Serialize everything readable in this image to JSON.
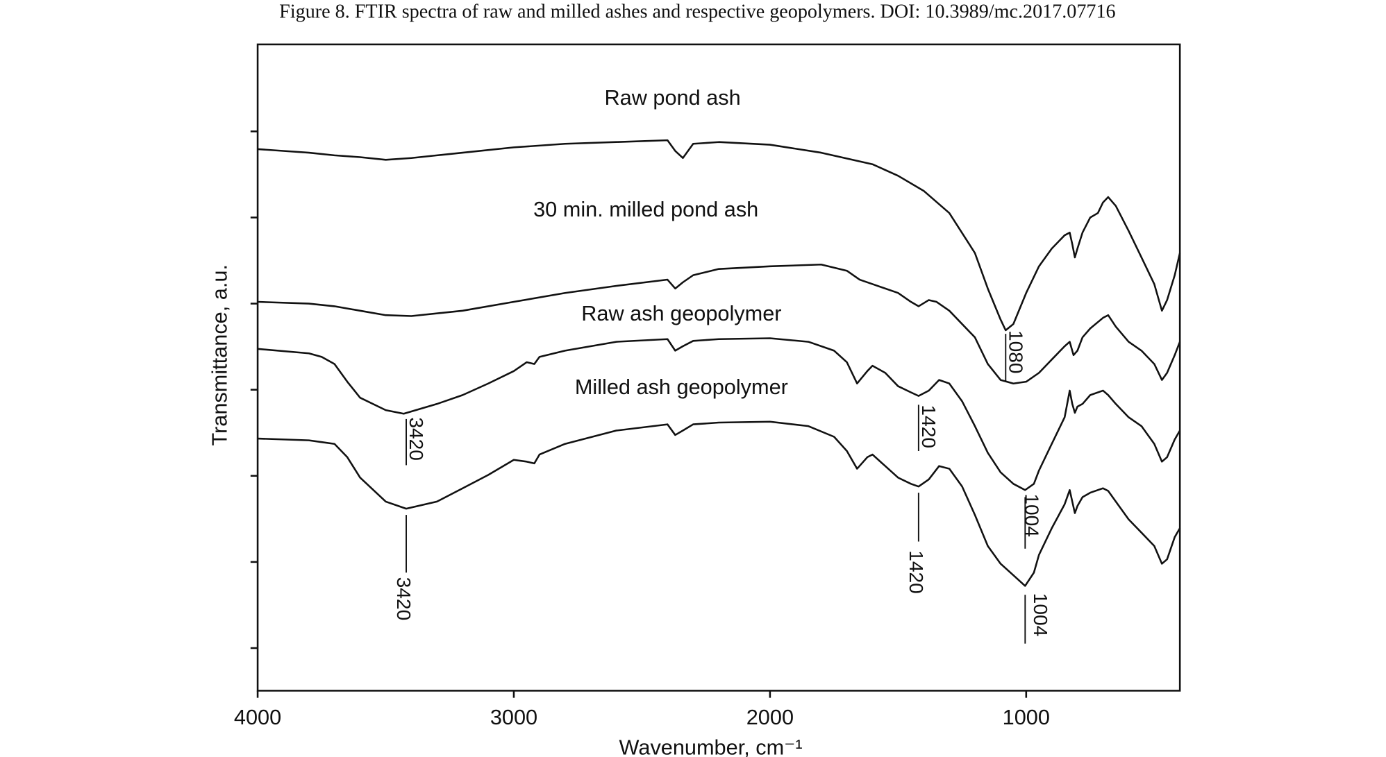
{
  "chart_data": {
    "type": "line",
    "title": "Figure 8. FTIR spectra of raw and milled ashes and respective geopolymers. DOI: 10.3989/mc.2017.07716",
    "x_label": "Wavenumber, cm⁻¹",
    "y_label": "Transmittance, a.u.",
    "xlim": [
      4000,
      400
    ],
    "xticks": [
      4000,
      3000,
      2000,
      1000
    ],
    "ylim": [
      0,
      728
    ],
    "yticks": [
      630,
      533,
      436,
      339,
      242,
      145,
      48
    ],
    "ytick_labels": false,
    "grid": false,
    "series": [
      {
        "name": "Raw pond ash",
        "color": "#111111",
        "x": [
          4000,
          3900,
          3800,
          3700,
          3600,
          3500,
          3400,
          3300,
          3200,
          3000,
          2800,
          2600,
          2400,
          2370,
          2340,
          2300,
          2200,
          2000,
          1800,
          1600,
          1500,
          1400,
          1300,
          1200,
          1150,
          1100,
          1080,
          1050,
          1000,
          950,
          900,
          850,
          830,
          820,
          810,
          800,
          780,
          750,
          720,
          700,
          680,
          650,
          600,
          550,
          500,
          470,
          450,
          420,
          400
        ],
        "values": [
          610,
          608,
          606,
          603,
          601,
          598,
          600,
          603,
          606,
          612,
          616,
          618,
          620,
          608,
          600,
          616,
          618,
          615,
          606,
          593,
          580,
          563,
          538,
          493,
          453,
          418,
          406,
          413,
          448,
          478,
          498,
          513,
          516,
          503,
          488,
          498,
          516,
          533,
          538,
          550,
          556,
          546,
          518,
          488,
          458,
          428,
          440,
          468,
          493
        ]
      },
      {
        "name": "30 min. milled pond ash",
        "color": "#111111",
        "x": [
          4000,
          3800,
          3700,
          3600,
          3500,
          3400,
          3200,
          3000,
          2800,
          2600,
          2400,
          2370,
          2340,
          2300,
          2200,
          2000,
          1800,
          1700,
          1650,
          1600,
          1500,
          1450,
          1420,
          1380,
          1350,
          1300,
          1200,
          1150,
          1100,
          1050,
          1000,
          950,
          900,
          850,
          830,
          815,
          800,
          780,
          750,
          700,
          680,
          650,
          600,
          550,
          500,
          470,
          450,
          420,
          400
        ],
        "values": [
          438,
          436,
          433,
          428,
          423,
          422,
          428,
          438,
          448,
          456,
          463,
          453,
          460,
          468,
          475,
          478,
          480,
          473,
          463,
          458,
          448,
          438,
          433,
          440,
          438,
          428,
          398,
          368,
          350,
          346,
          348,
          358,
          373,
          388,
          393,
          378,
          383,
          398,
          408,
          420,
          423,
          410,
          393,
          383,
          368,
          350,
          358,
          378,
          393
        ]
      },
      {
        "name": "Raw ash geopolymer",
        "color": "#111111",
        "x": [
          4000,
          3800,
          3750,
          3700,
          3650,
          3600,
          3500,
          3430,
          3300,
          3200,
          3100,
          3000,
          2950,
          2920,
          2900,
          2800,
          2600,
          2400,
          2370,
          2340,
          2300,
          2200,
          2000,
          1850,
          1750,
          1700,
          1660,
          1620,
          1600,
          1550,
          1500,
          1450,
          1420,
          1380,
          1340,
          1300,
          1250,
          1200,
          1150,
          1100,
          1050,
          1004,
          970,
          950,
          900,
          850,
          830,
          820,
          810,
          800,
          780,
          750,
          700,
          680,
          650,
          600,
          550,
          500,
          470,
          450,
          420,
          400
        ],
        "values": [
          385,
          380,
          376,
          368,
          348,
          330,
          316,
          312,
          323,
          333,
          346,
          360,
          370,
          368,
          376,
          383,
          393,
          396,
          383,
          388,
          394,
          396,
          397,
          393,
          383,
          370,
          346,
          360,
          366,
          358,
          343,
          336,
          332,
          338,
          350,
          346,
          326,
          298,
          268,
          246,
          233,
          226,
          233,
          248,
          278,
          308,
          338,
          323,
          313,
          320,
          323,
          333,
          338,
          333,
          323,
          308,
          298,
          278,
          258,
          263,
          283,
          293
        ]
      },
      {
        "name": "Milled ash geopolymer",
        "color": "#111111",
        "x": [
          4000,
          3800,
          3750,
          3700,
          3650,
          3600,
          3500,
          3420,
          3300,
          3200,
          3100,
          3000,
          2950,
          2920,
          2900,
          2800,
          2600,
          2400,
          2370,
          2340,
          2300,
          2200,
          2000,
          1850,
          1750,
          1700,
          1660,
          1620,
          1600,
          1550,
          1500,
          1450,
          1420,
          1380,
          1340,
          1300,
          1250,
          1200,
          1150,
          1100,
          1050,
          1004,
          970,
          950,
          900,
          850,
          830,
          820,
          810,
          800,
          780,
          750,
          700,
          680,
          650,
          600,
          550,
          500,
          470,
          450,
          420,
          400
        ],
        "values": [
          284,
          282,
          280,
          278,
          263,
          240,
          213,
          205,
          213,
          228,
          243,
          260,
          258,
          256,
          266,
          278,
          293,
          300,
          288,
          293,
          300,
          302,
          303,
          298,
          286,
          270,
          250,
          263,
          266,
          253,
          240,
          233,
          230,
          238,
          253,
          250,
          230,
          198,
          163,
          143,
          130,
          118,
          133,
          153,
          183,
          210,
          226,
          213,
          200,
          208,
          218,
          223,
          228,
          225,
          213,
          193,
          178,
          163,
          143,
          148,
          173,
          183
        ]
      }
    ],
    "annotations": [
      {
        "x": 1080
      },
      {
        "x": 3420
      },
      {
        "x": 1420
      },
      {
        "x": 1004
      },
      {
        "x": 3420
      },
      {
        "x": 1420
      },
      {
        "x": 1004
      }
    ]
  }
}
